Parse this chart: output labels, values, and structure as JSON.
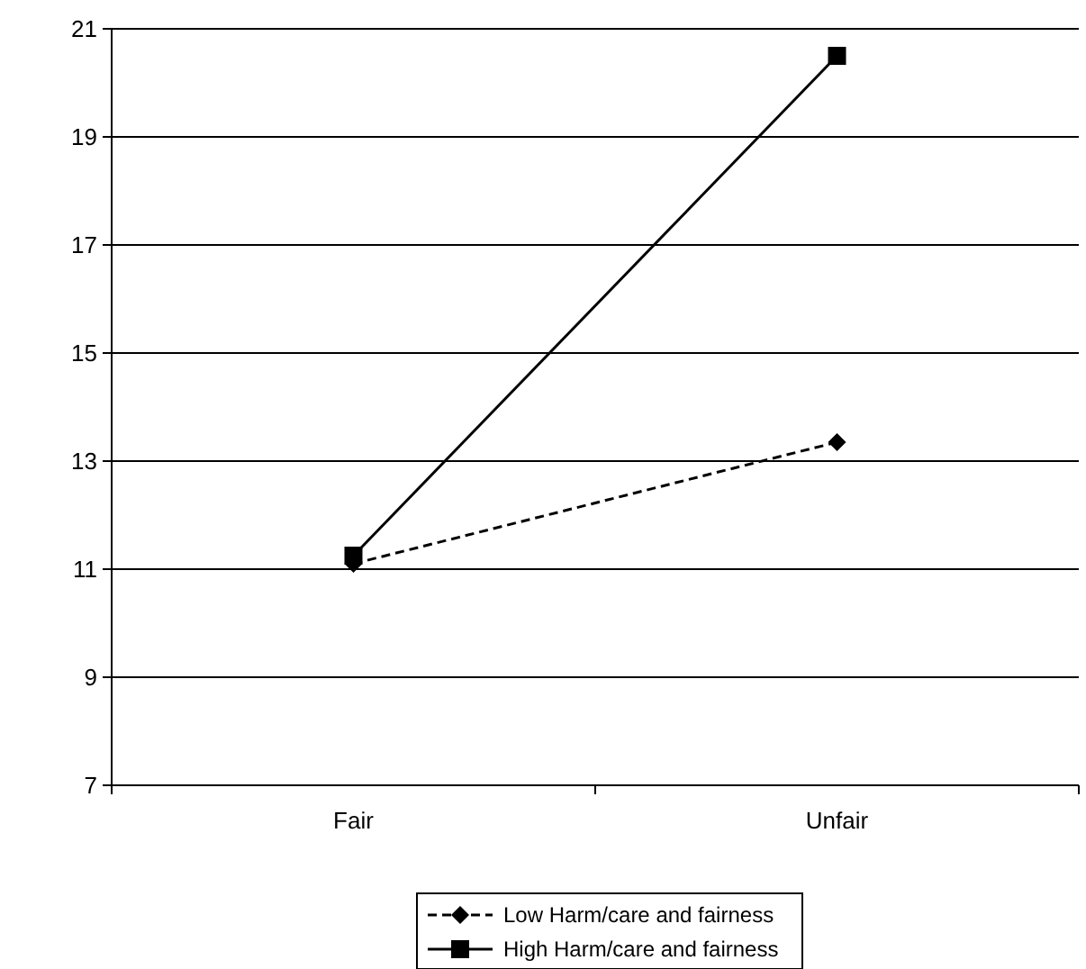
{
  "chart_data": {
    "type": "line",
    "categories": [
      "Fair",
      "Unfair"
    ],
    "series": [
      {
        "name": "Low Harm/care and fairness",
        "color": "#000000",
        "values": [
          11.1,
          13.35
        ],
        "marker": "diamond",
        "line_style": "dashed"
      },
      {
        "name": "High Harm/care and fairness",
        "color": "#000000",
        "values": [
          11.25,
          20.5
        ],
        "marker": "square",
        "line_style": "solid"
      }
    ],
    "ylim": [
      7,
      21
    ],
    "yticks": [
      7,
      9,
      11,
      13,
      15,
      17,
      19,
      21
    ],
    "grid": "y",
    "legend": "bottom"
  }
}
